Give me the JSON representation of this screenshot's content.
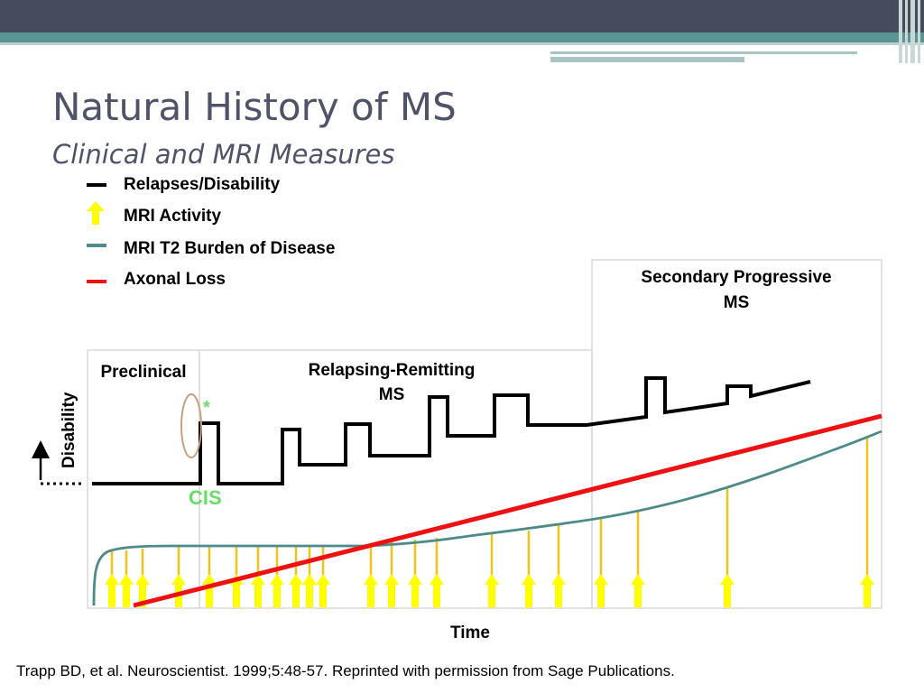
{
  "slide": {
    "title": "Natural History of MS",
    "subtitle": "Clinical and MRI Measures"
  },
  "legend": [
    {
      "label": "Relapses/Disability",
      "icon": "black-line",
      "color": "#000000"
    },
    {
      "label": "MRI Activity",
      "icon": "yellow-arrow",
      "color": "#ffff00"
    },
    {
      "label": "MRI T2 Burden of Disease",
      "icon": "teal-line",
      "color": "#4f8a8b"
    },
    {
      "label": "Axonal Loss",
      "icon": "red-line",
      "color": "#ee1111"
    }
  ],
  "diagram": {
    "phases": {
      "preclinical": "Preclinical",
      "rr_line1": "Relapsing-Remitting",
      "rr_line2": "MS",
      "sp_line1": "Secondary Progressive",
      "sp_line2": "MS"
    },
    "cis_label": "CIS",
    "asterisk": "*",
    "y_axis_label": "Disability",
    "x_axis_label": "Time",
    "colors": {
      "relapses": "#000000",
      "mri_activity_arrow": "#ffff00",
      "mri_activity_stem": "#f2c21b",
      "t2_burden": "#4f8a8b",
      "axonal_loss": "#ee1111",
      "cis": "#66dd66",
      "oval": "#c8a07a",
      "panel_border": "#d9d9d9"
    }
  },
  "citation": "Trapp BD, et al. Neuroscientist. 1999;5:48-57. Reprinted with permission from Sage Publications."
}
